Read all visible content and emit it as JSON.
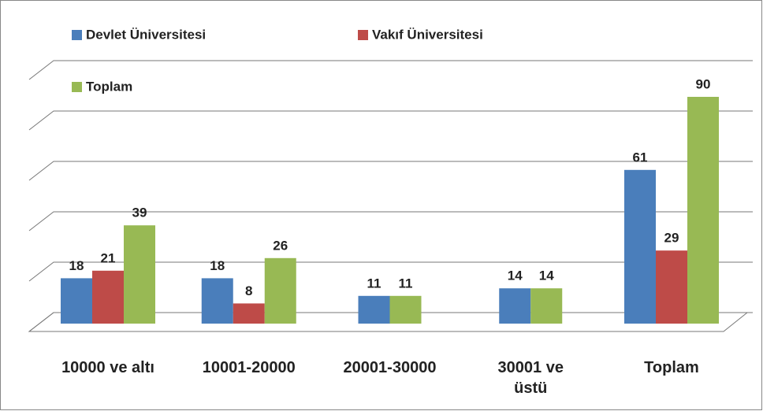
{
  "chart_data": {
    "type": "bar",
    "categories": [
      "10000 ve altı",
      "10001-20000",
      "20001-30000",
      "30001 ve üstü",
      "Toplam"
    ],
    "series": [
      {
        "name": "Devlet Üniversitesi",
        "color": "#4a7ebb",
        "values": [
          18,
          18,
          11,
          14,
          61
        ]
      },
      {
        "name": "Vakıf Üniversitesi",
        "color": "#be4b48",
        "values": [
          21,
          8,
          null,
          null,
          29
        ]
      },
      {
        "name": "Toplam",
        "color": "#98b954",
        "values": [
          39,
          26,
          11,
          14,
          90
        ]
      }
    ],
    "ylim": [
      0,
      100
    ],
    "yticks": [
      0,
      20,
      40,
      60,
      80,
      100
    ],
    "grid": true
  }
}
